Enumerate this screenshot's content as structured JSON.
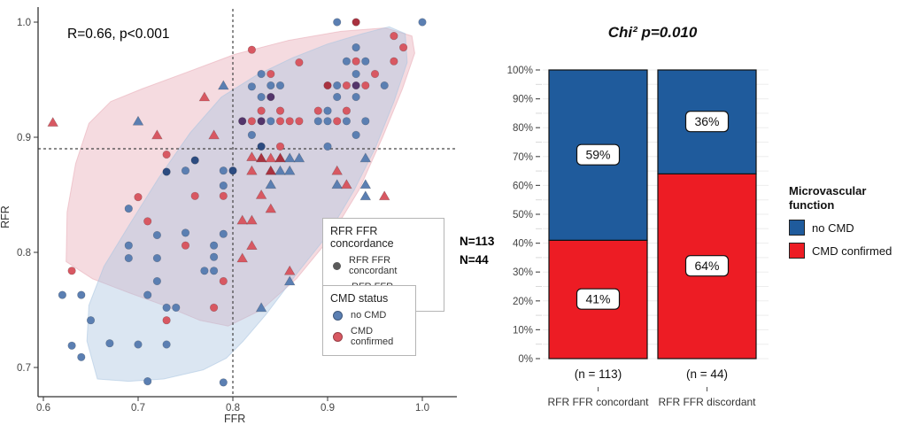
{
  "figure": {
    "n_labels": [
      "N=113",
      "N=44"
    ]
  },
  "chart_data": [
    {
      "type": "scatter",
      "annotation": "R=0.66, p<0.001",
      "xlabel": "FFR",
      "ylabel": "RFR",
      "xlim": [
        0.6,
        1.02
      ],
      "ylim": [
        0.68,
        1.01
      ],
      "x_ticks": [
        0.6,
        0.7,
        0.8,
        0.9,
        1.0
      ],
      "y_ticks": [
        0.7,
        0.8,
        0.9,
        1.0
      ],
      "cutoffs": {
        "ffr": 0.8,
        "rfr": 0.89
      },
      "group_counts": {
        "concordant": 113,
        "discordant": 44
      },
      "legend_concordance": {
        "title": "RFR FFR concordance",
        "items": [
          {
            "label": "RFR FFR concordant",
            "shape": "circle"
          },
          {
            "label": "RFR FFR discordant",
            "shape": "triangle"
          }
        ]
      },
      "legend_cmd": {
        "title": "CMD status",
        "items": [
          {
            "label": "no CMD",
            "color": "#5b7fb2"
          },
          {
            "label": "CMD confirmed",
            "color": "#d85862"
          }
        ]
      },
      "point_colors": {
        "b": "#5b7fb2",
        "r": "#d85862",
        "db": "#2c4b80",
        "dr": "#a93240",
        "p": "#53356b"
      },
      "hull_colors": {
        "cmd_pink": "#e8a9b4",
        "no_cmd_blue": "#aac4e0"
      },
      "points": [
        [
          0.91,
          1.0,
          "c",
          "b"
        ],
        [
          1.0,
          1.0,
          "c",
          "b"
        ],
        [
          0.93,
          0.978,
          "c",
          "b"
        ],
        [
          0.92,
          0.966,
          "c",
          "b"
        ],
        [
          0.94,
          0.966,
          "c",
          "b"
        ],
        [
          0.93,
          0.955,
          "c",
          "b"
        ],
        [
          0.91,
          0.945,
          "c",
          "b"
        ],
        [
          0.96,
          0.945,
          "c",
          "b"
        ],
        [
          0.91,
          0.935,
          "c",
          "b"
        ],
        [
          0.93,
          0.935,
          "c",
          "b"
        ],
        [
          0.9,
          0.923,
          "c",
          "b"
        ],
        [
          0.89,
          0.914,
          "c",
          "b"
        ],
        [
          0.9,
          0.914,
          "c",
          "b"
        ],
        [
          0.92,
          0.914,
          "c",
          "b"
        ],
        [
          0.94,
          0.914,
          "c",
          "b"
        ],
        [
          0.93,
          0.902,
          "c",
          "b"
        ],
        [
          0.83,
          0.955,
          "c",
          "b"
        ],
        [
          0.82,
          0.944,
          "c",
          "b"
        ],
        [
          0.84,
          0.945,
          "c",
          "b"
        ],
        [
          0.85,
          0.945,
          "c",
          "b"
        ],
        [
          0.83,
          0.935,
          "c",
          "b"
        ],
        [
          0.84,
          0.914,
          "c",
          "b"
        ],
        [
          0.82,
          0.902,
          "c",
          "b"
        ],
        [
          0.9,
          0.892,
          "c",
          "b"
        ],
        [
          0.75,
          0.871,
          "c",
          "b"
        ],
        [
          0.79,
          0.871,
          "c",
          "b"
        ],
        [
          0.79,
          0.858,
          "c",
          "b"
        ],
        [
          0.75,
          0.817,
          "c",
          "b"
        ],
        [
          0.79,
          0.816,
          "c",
          "b"
        ],
        [
          0.78,
          0.806,
          "c",
          "b"
        ],
        [
          0.78,
          0.796,
          "c",
          "b"
        ],
        [
          0.77,
          0.784,
          "c",
          "b"
        ],
        [
          0.78,
          0.784,
          "c",
          "b"
        ],
        [
          0.69,
          0.838,
          "c",
          "b"
        ],
        [
          0.72,
          0.815,
          "c",
          "b"
        ],
        [
          0.69,
          0.806,
          "c",
          "b"
        ],
        [
          0.69,
          0.795,
          "c",
          "b"
        ],
        [
          0.72,
          0.795,
          "c",
          "b"
        ],
        [
          0.72,
          0.775,
          "c",
          "b"
        ],
        [
          0.62,
          0.763,
          "c",
          "b"
        ],
        [
          0.64,
          0.763,
          "c",
          "b"
        ],
        [
          0.71,
          0.763,
          "c",
          "b"
        ],
        [
          0.65,
          0.741,
          "c",
          "b"
        ],
        [
          0.73,
          0.752,
          "c",
          "b"
        ],
        [
          0.74,
          0.752,
          "c",
          "b"
        ],
        [
          0.63,
          0.719,
          "c",
          "b"
        ],
        [
          0.67,
          0.721,
          "c",
          "b"
        ],
        [
          0.7,
          0.72,
          "c",
          "b"
        ],
        [
          0.73,
          0.72,
          "c",
          "b"
        ],
        [
          0.64,
          0.709,
          "c",
          "b"
        ],
        [
          0.71,
          0.688,
          "c",
          "b"
        ],
        [
          0.79,
          0.687,
          "c",
          "b"
        ],
        [
          0.83,
          0.892,
          "c",
          "db"
        ],
        [
          0.76,
          0.88,
          "c",
          "db"
        ],
        [
          0.8,
          0.871,
          "c",
          "db"
        ],
        [
          0.73,
          0.87,
          "c",
          "db"
        ],
        [
          0.97,
          0.988,
          "c",
          "r"
        ],
        [
          0.98,
          0.978,
          "c",
          "r"
        ],
        [
          0.93,
          0.966,
          "c",
          "r"
        ],
        [
          0.97,
          0.966,
          "c",
          "r"
        ],
        [
          0.95,
          0.955,
          "c",
          "r"
        ],
        [
          0.92,
          0.945,
          "c",
          "r"
        ],
        [
          0.94,
          0.945,
          "c",
          "r"
        ],
        [
          0.89,
          0.923,
          "c",
          "r"
        ],
        [
          0.92,
          0.923,
          "c",
          "r"
        ],
        [
          0.91,
          0.914,
          "c",
          "r"
        ],
        [
          0.82,
          0.976,
          "c",
          "r"
        ],
        [
          0.87,
          0.965,
          "c",
          "r"
        ],
        [
          0.84,
          0.955,
          "c",
          "r"
        ],
        [
          0.83,
          0.923,
          "c",
          "r"
        ],
        [
          0.85,
          0.923,
          "c",
          "r"
        ],
        [
          0.82,
          0.914,
          "c",
          "r"
        ],
        [
          0.85,
          0.914,
          "c",
          "r"
        ],
        [
          0.86,
          0.914,
          "c",
          "r"
        ],
        [
          0.87,
          0.914,
          "c",
          "r"
        ],
        [
          0.85,
          0.892,
          "c",
          "r"
        ],
        [
          0.76,
          0.849,
          "c",
          "r"
        ],
        [
          0.79,
          0.849,
          "c",
          "r"
        ],
        [
          0.75,
          0.806,
          "c",
          "r"
        ],
        [
          0.79,
          0.775,
          "c",
          "r"
        ],
        [
          0.73,
          0.885,
          "c",
          "r"
        ],
        [
          0.7,
          0.848,
          "c",
          "r"
        ],
        [
          0.71,
          0.827,
          "c",
          "r"
        ],
        [
          0.63,
          0.784,
          "c",
          "r"
        ],
        [
          0.73,
          0.741,
          "c",
          "r"
        ],
        [
          0.78,
          0.752,
          "c",
          "r"
        ],
        [
          0.93,
          1.0,
          "c",
          "dr"
        ],
        [
          0.9,
          0.945,
          "c",
          "dr"
        ],
        [
          0.93,
          0.945,
          "c",
          "p"
        ],
        [
          0.84,
          0.935,
          "c",
          "p"
        ],
        [
          0.81,
          0.914,
          "c",
          "p"
        ],
        [
          0.83,
          0.914,
          "c",
          "p"
        ],
        [
          0.79,
          0.945,
          "t",
          "b"
        ],
        [
          0.7,
          0.914,
          "t",
          "b"
        ],
        [
          0.86,
          0.882,
          "t",
          "b"
        ],
        [
          0.87,
          0.882,
          "t",
          "b"
        ],
        [
          0.85,
          0.871,
          "t",
          "b"
        ],
        [
          0.86,
          0.871,
          "t",
          "b"
        ],
        [
          0.84,
          0.859,
          "t",
          "b"
        ],
        [
          0.94,
          0.882,
          "t",
          "b"
        ],
        [
          0.91,
          0.859,
          "t",
          "b"
        ],
        [
          0.94,
          0.859,
          "t",
          "b"
        ],
        [
          0.94,
          0.849,
          "t",
          "b"
        ],
        [
          0.86,
          0.775,
          "t",
          "b"
        ],
        [
          0.83,
          0.752,
          "t",
          "b"
        ],
        [
          0.77,
          0.935,
          "t",
          "r"
        ],
        [
          0.78,
          0.902,
          "t",
          "r"
        ],
        [
          0.61,
          0.913,
          "t",
          "r"
        ],
        [
          0.72,
          0.902,
          "t",
          "r"
        ],
        [
          0.82,
          0.883,
          "t",
          "r"
        ],
        [
          0.84,
          0.882,
          "t",
          "r"
        ],
        [
          0.82,
          0.871,
          "t",
          "r"
        ],
        [
          0.83,
          0.85,
          "t",
          "r"
        ],
        [
          0.84,
          0.838,
          "t",
          "r"
        ],
        [
          0.81,
          0.828,
          "t",
          "r"
        ],
        [
          0.82,
          0.828,
          "t",
          "r"
        ],
        [
          0.82,
          0.806,
          "t",
          "r"
        ],
        [
          0.81,
          0.795,
          "t",
          "r"
        ],
        [
          0.86,
          0.784,
          "t",
          "r"
        ],
        [
          0.91,
          0.871,
          "t",
          "r"
        ],
        [
          0.92,
          0.859,
          "t",
          "r"
        ],
        [
          0.96,
          0.849,
          "t",
          "r"
        ],
        [
          0.83,
          0.882,
          "t",
          "dr"
        ],
        [
          0.85,
          0.882,
          "t",
          "dr"
        ],
        [
          0.84,
          0.871,
          "t",
          "dr"
        ]
      ],
      "hulls": {
        "cmd_region": [
          [
            0.624,
            0.792
          ],
          [
            0.625,
            0.835
          ],
          [
            0.634,
            0.877
          ],
          [
            0.648,
            0.912
          ],
          [
            0.671,
            0.931
          ],
          [
            0.704,
            0.942
          ],
          [
            0.75,
            0.956
          ],
          [
            0.802,
            0.972
          ],
          [
            0.858,
            0.984
          ],
          [
            0.914,
            0.992
          ],
          [
            0.961,
            0.995
          ],
          [
            0.989,
            0.988
          ],
          [
            0.992,
            0.973
          ],
          [
            0.979,
            0.942
          ],
          [
            0.958,
            0.9
          ],
          [
            0.933,
            0.854
          ],
          [
            0.902,
            0.812
          ],
          [
            0.867,
            0.777
          ],
          [
            0.83,
            0.75
          ],
          [
            0.795,
            0.736
          ],
          [
            0.765,
            0.741
          ],
          [
            0.727,
            0.754
          ],
          [
            0.69,
            0.765
          ],
          [
            0.652,
            0.777
          ]
        ],
        "no_cmd_region": [
          [
            0.657,
            0.69
          ],
          [
            0.646,
            0.723
          ],
          [
            0.648,
            0.754
          ],
          [
            0.664,
            0.788
          ],
          [
            0.69,
            0.823
          ],
          [
            0.722,
            0.865
          ],
          [
            0.755,
            0.904
          ],
          [
            0.788,
            0.935
          ],
          [
            0.825,
            0.954
          ],
          [
            0.863,
            0.969
          ],
          [
            0.9,
            0.981
          ],
          [
            0.937,
            0.99
          ],
          [
            0.965,
            0.996
          ],
          [
            0.982,
            0.99
          ],
          [
            0.984,
            0.965
          ],
          [
            0.97,
            0.931
          ],
          [
            0.951,
            0.892
          ],
          [
            0.928,
            0.854
          ],
          [
            0.9,
            0.815
          ],
          [
            0.867,
            0.781
          ],
          [
            0.835,
            0.746
          ],
          [
            0.811,
            0.723
          ],
          [
            0.793,
            0.708
          ],
          [
            0.769,
            0.698
          ],
          [
            0.727,
            0.69
          ],
          [
            0.69,
            0.688
          ]
        ]
      }
    },
    {
      "type": "bar",
      "stacked": true,
      "title": "Chi² p=0.010",
      "categories": [
        "RFR FFR concordant",
        "RFR FFR discordant"
      ],
      "category_counts": [
        "(n = 113)",
        "(n = 44)"
      ],
      "series": [
        {
          "name": "no CMD",
          "color": "#1f5b9c",
          "values": [
            59,
            36
          ]
        },
        {
          "name": "CMD confirmed",
          "color": "#ed1c24",
          "values": [
            41,
            64
          ]
        }
      ],
      "bar_labels": [
        [
          "59%",
          "41%"
        ],
        [
          "36%",
          "64%"
        ]
      ],
      "y_ticks": [
        "0%",
        "10%",
        "20%",
        "30%",
        "40%",
        "50%",
        "60%",
        "70%",
        "80%",
        "90%",
        "100%"
      ],
      "ylim": [
        0,
        100
      ],
      "grid": true,
      "legend": {
        "title": "Microvascular function",
        "position": "right",
        "items": [
          {
            "label": "no CMD",
            "color": "#1f5b9c"
          },
          {
            "label": "CMD confirmed",
            "color": "#ed1c24"
          }
        ]
      }
    }
  ]
}
